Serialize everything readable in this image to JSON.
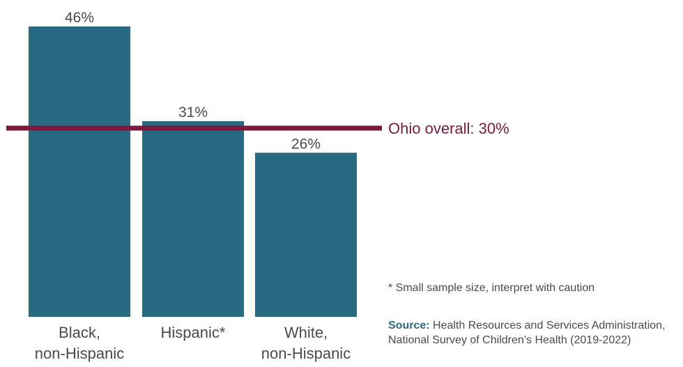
{
  "chart_data": {
    "type": "bar",
    "categories": [
      [
        "Black,",
        "non-Hispanic"
      ],
      [
        "Hispanic*"
      ],
      [
        "White,",
        "non-Hispanic"
      ]
    ],
    "values": [
      46,
      31,
      26
    ],
    "value_labels": [
      "46%",
      "31%",
      "26%"
    ],
    "ylim": [
      0,
      46
    ],
    "reference_line": {
      "value": 30,
      "label": "Ohio overall: 30%"
    },
    "grid": false,
    "colors": {
      "bar": "#276a82",
      "reference": "#7a1a3c"
    }
  },
  "footnote": "* Small sample size, interpret with caution",
  "source": {
    "label": "Source:",
    "text": " Health Resources and Services Administration, National Survey of Children’s Health (2019-2022)"
  }
}
